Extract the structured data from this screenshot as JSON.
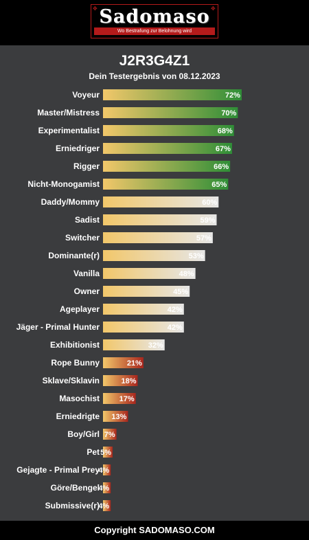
{
  "header": {
    "logo_text": "Sadomaso",
    "logo_tagline": "Wo Bestrafung zur Belohnung wird"
  },
  "result": {
    "code": "J2R3G4Z1",
    "subtitle": "Dein Testergebnis von 08.12.2023"
  },
  "colors": {
    "bar_start": "#f2c76a",
    "high": "#2f8e37",
    "mid": "#e6e6e6",
    "low": "#a8261d"
  },
  "chart_data": {
    "type": "bar",
    "orientation": "horizontal",
    "title": "",
    "xlabel": "",
    "ylabel": "",
    "xlim": [
      0,
      100
    ],
    "unit": "%",
    "categories": [
      "Voyeur",
      "Master/Mistress",
      "Experimentalist",
      "Erniedriger",
      "Rigger",
      "Nicht-Monogamist",
      "Daddy/Mommy",
      "Sadist",
      "Switcher",
      "Dominante(r)",
      "Vanilla",
      "Owner",
      "Ageplayer",
      "Jäger - Primal Hunter",
      "Exhibitionist",
      "Rope Bunny",
      "Sklave/Sklavin",
      "Masochist",
      "Erniedrigte",
      "Boy/Girl",
      "Pet",
      "Gejagte - Primal Prey",
      "Göre/Bengel",
      "Submissive(r)"
    ],
    "values": [
      72,
      70,
      68,
      67,
      66,
      65,
      60,
      59,
      57,
      53,
      48,
      45,
      42,
      42,
      32,
      21,
      18,
      17,
      13,
      7,
      5,
      4,
      4,
      4
    ],
    "value_labels": [
      "72%",
      "70%",
      "68%",
      "67%",
      "66%",
      "65%",
      "60%",
      "59%",
      "57%",
      "53%",
      "48%",
      "45%",
      "42%",
      "42%",
      "32%",
      "21%",
      "18%",
      "17%",
      "13%",
      "7%",
      "5%",
      "4%",
      "4%",
      "4%"
    ]
  },
  "footer": {
    "copyright": "Copyright SADOMASO.COM"
  }
}
